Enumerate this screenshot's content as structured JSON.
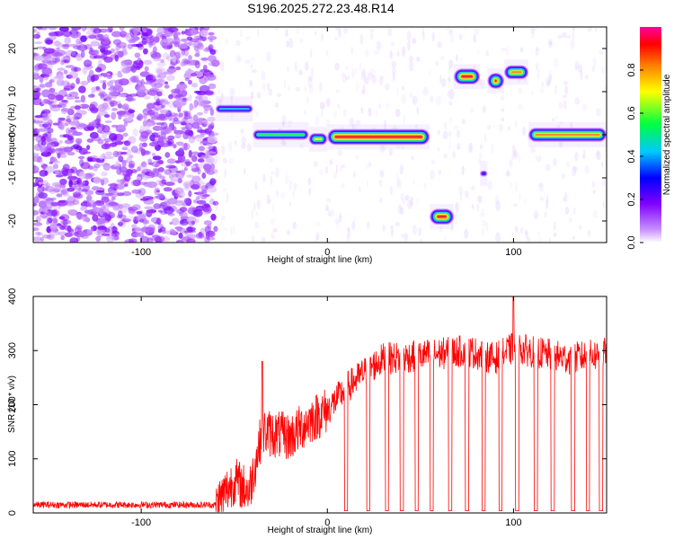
{
  "title": "S196.2025.272.23.48.R14",
  "chart_data": [
    {
      "type": "heatmap",
      "name": "spectrogram",
      "xlabel": "Height of straight line (km)",
      "ylabel": "Frequency (Hz)",
      "xlim": [
        -158,
        150
      ],
      "ylim": [
        -25,
        25
      ],
      "xticks": [
        -100,
        0,
        100
      ],
      "yticks": [
        -20,
        -10,
        0,
        10,
        20
      ],
      "colorbar": {
        "label": "Normalized spectral amplitude",
        "range": [
          0.0,
          1.0
        ],
        "ticks": [
          "0.0",
          "0.2",
          "0.4",
          "0.6",
          "0.8"
        ],
        "colors": [
          "#ffffff",
          "#d9b3ff",
          "#8000ff",
          "#0000ff",
          "#00c8ff",
          "#00ff40",
          "#ffff00",
          "#ff8000",
          "#ff0000",
          "#ff00a0"
        ]
      },
      "noise_region_x": [
        -158,
        -60
      ],
      "segments": [
        {
          "x0": -60,
          "x1": -40,
          "f": 6,
          "amp": 0.5
        },
        {
          "x0": -40,
          "x1": -10,
          "f": 0,
          "amp": 0.55
        },
        {
          "x0": -10,
          "x1": 0,
          "f": -1,
          "amp": 0.7
        },
        {
          "x0": 0,
          "x1": 55,
          "f": -0.5,
          "amp": 0.95
        },
        {
          "x0": 55,
          "x1": 68,
          "f": -19,
          "amp": 0.95
        },
        {
          "x0": 68,
          "x1": 82,
          "f": 13.5,
          "amp": 0.95
        },
        {
          "x0": 82,
          "x1": 86,
          "f": -9,
          "amp": 0.35
        },
        {
          "x0": 86,
          "x1": 95,
          "f": 12.5,
          "amp": 0.95
        },
        {
          "x0": 95,
          "x1": 108,
          "f": 14.5,
          "amp": 0.9
        },
        {
          "x0": 108,
          "x1": 150,
          "f": 0,
          "amp": 0.9
        }
      ]
    },
    {
      "type": "line",
      "name": "snr",
      "xlabel": "Height of straight line (km)",
      "ylabel": "SNR (10 * v/v)",
      "xlim": [
        -158,
        150
      ],
      "ylim": [
        0,
        400
      ],
      "xticks": [
        -100,
        0,
        100
      ],
      "yticks": [
        0,
        100,
        200,
        300,
        400
      ],
      "color": "#ff0000",
      "trend": [
        {
          "x": -158,
          "y": 15
        },
        {
          "x": -60,
          "y": 15
        },
        {
          "x": -50,
          "y": 60
        },
        {
          "x": -42,
          "y": 40
        },
        {
          "x": -35,
          "y": 150
        },
        {
          "x": -20,
          "y": 140
        },
        {
          "x": -10,
          "y": 170
        },
        {
          "x": 0,
          "y": 190
        },
        {
          "x": 10,
          "y": 230
        },
        {
          "x": 20,
          "y": 260
        },
        {
          "x": 30,
          "y": 285
        },
        {
          "x": 50,
          "y": 290
        },
        {
          "x": 75,
          "y": 300
        },
        {
          "x": 90,
          "y": 285
        },
        {
          "x": 100,
          "y": 305
        },
        {
          "x": 130,
          "y": 285
        },
        {
          "x": 150,
          "y": 295
        }
      ],
      "dropouts_x": [
        10,
        22,
        32,
        40,
        48,
        56,
        66,
        75,
        84,
        93,
        102,
        112,
        121,
        132,
        140,
        147
      ],
      "spikes": [
        {
          "x": 100,
          "y": 405
        },
        {
          "x": -35,
          "y": 280
        }
      ]
    }
  ]
}
